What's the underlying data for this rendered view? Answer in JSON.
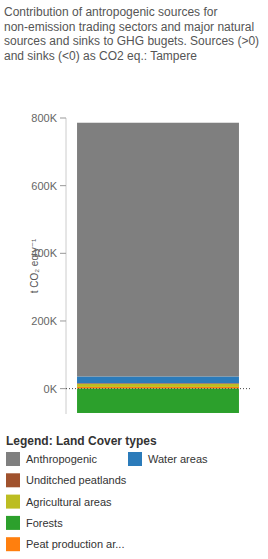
{
  "chart_data": {
    "type": "bar",
    "stacked": true,
    "title": "Contribution of antropogenic sources for non-emission trading sectors and major natural sources and sinks to GHG bugets. Sources (>0) and sinks (<0)  as CO2 eq.: Tampere",
    "y_label": "t CO₂ eq y⁻¹",
    "legend_title": "Legend: Land Cover types",
    "legend": "bottom",
    "grid": false,
    "categories": [
      null
    ],
    "ylim": [
      -75000,
      800000
    ],
    "yticks": [
      {
        "value": 0,
        "label": "0K"
      },
      {
        "value": 200000,
        "label": "200K"
      },
      {
        "value": 400000,
        "label": "400K"
      },
      {
        "value": 600000,
        "label": "600K"
      },
      {
        "value": 800000,
        "label": "800K"
      }
    ],
    "series": [
      {
        "name": "Anthropogenic",
        "color": "#7f7f7f",
        "values": [
          750000
        ]
      },
      {
        "name": "Water areas",
        "color": "#2b7bba",
        "values": [
          20000
        ]
      },
      {
        "name": "Unditched peatlands",
        "color": "#a0522d",
        "values": [
          2000
        ]
      },
      {
        "name": "Agricultural areas",
        "color": "#bcbd22",
        "values": [
          9000
        ]
      },
      {
        "name": "Forests",
        "color": "#2ca02c",
        "values": [
          -72000
        ]
      },
      {
        "name": "Peat production ar...",
        "color": "#ff7f0e",
        "values": [
          5000
        ]
      }
    ]
  }
}
